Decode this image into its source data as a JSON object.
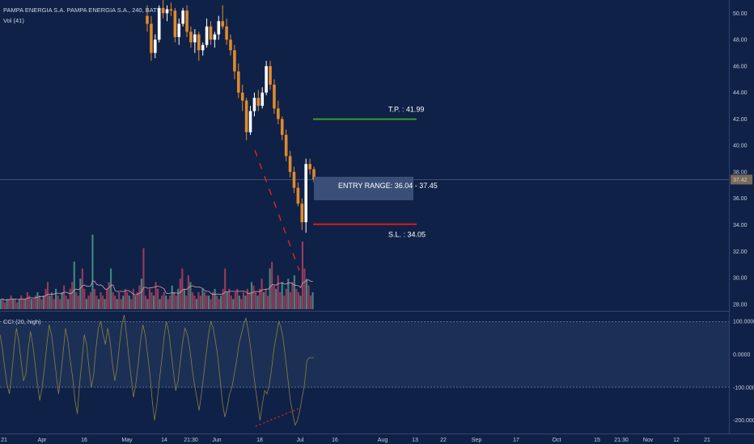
{
  "header": {
    "symbol_line": "PAMPA ENERGIA S.A. PAMPA ENERGIA S.A., 240, BATS",
    "volume_line": "Vol (41)",
    "cci_label": "CCI (20, high)"
  },
  "colors": {
    "background": "#0f2147",
    "candle_up": "#ffffff",
    "candle_down": "#e08a2c",
    "tp_line": "#3f9a2e",
    "sl_line": "#d61c1c",
    "trend_dashed": "#e02424",
    "entry_box": "#3a4f78",
    "cci_line": "#8a8040",
    "volume_bar": "#b04060",
    "volume_ma": "#d8a0a8"
  },
  "price_axis": {
    "ticks": [
      "50.00",
      "48.00",
      "46.00",
      "44.00",
      "42.00",
      "40.00",
      "38.00",
      "36.00",
      "34.00",
      "32.00",
      "30.00",
      "28.00"
    ],
    "last_price": "37.42"
  },
  "cci_axis": {
    "ticks": [
      "100.0000",
      "0.0000",
      "-100.0000",
      "-200.0000"
    ]
  },
  "time_axis": {
    "ticks": [
      "21",
      "Apr",
      "16",
      "May",
      "14",
      "21:30",
      "Jun",
      "18",
      "Jul",
      "16",
      "Aug",
      "13",
      "22",
      "Sep",
      "17",
      "Oct",
      "15",
      "21:30",
      "Nov",
      "12",
      "21"
    ]
  },
  "annotations": {
    "tp_label": "T.P. : 41.99",
    "sl_label": "S.L. : 34.05",
    "entry_label": "ENTRY RANGE: 36.04 - 37.45"
  },
  "chart_data": {
    "type": "candlestick",
    "title": "PAMPA ENERGIA S.A. PAMPA ENERGIA S.A., 240, BATS",
    "ylim": [
      27.5,
      51
    ],
    "levels": {
      "take_profit": 41.99,
      "stop_loss": 34.05,
      "entry_low": 36.04,
      "entry_high": 37.45,
      "last_price": 37.42
    },
    "cci_levels": [
      100,
      0,
      -100,
      -200
    ],
    "candles_visible": "late May – early Jul (approximate)",
    "candles": [
      {
        "o": 49.8,
        "h": 50.6,
        "l": 48.6,
        "c": 49.2
      },
      {
        "o": 49.2,
        "h": 49.8,
        "l": 46.4,
        "c": 47.0
      },
      {
        "o": 47.0,
        "h": 48.4,
        "l": 46.6,
        "c": 48.0
      },
      {
        "o": 48.0,
        "h": 50.6,
        "l": 47.8,
        "c": 50.4
      },
      {
        "o": 50.4,
        "h": 51.0,
        "l": 49.6,
        "c": 50.0
      },
      {
        "o": 50.0,
        "h": 50.6,
        "l": 49.4,
        "c": 50.3
      },
      {
        "o": 50.3,
        "h": 50.8,
        "l": 49.8,
        "c": 50.2
      },
      {
        "o": 50.2,
        "h": 50.4,
        "l": 47.8,
        "c": 48.2
      },
      {
        "o": 48.2,
        "h": 49.6,
        "l": 47.6,
        "c": 49.2
      },
      {
        "o": 49.2,
        "h": 50.4,
        "l": 49.0,
        "c": 50.2
      },
      {
        "o": 50.2,
        "h": 50.6,
        "l": 48.2,
        "c": 48.6
      },
      {
        "o": 48.6,
        "h": 49.0,
        "l": 47.4,
        "c": 47.8
      },
      {
        "o": 47.8,
        "h": 48.8,
        "l": 47.0,
        "c": 48.4
      },
      {
        "o": 48.4,
        "h": 48.6,
        "l": 46.4,
        "c": 47.2
      },
      {
        "o": 47.2,
        "h": 47.8,
        "l": 46.8,
        "c": 47.6
      },
      {
        "o": 47.6,
        "h": 49.6,
        "l": 47.4,
        "c": 49.0
      },
      {
        "o": 49.0,
        "h": 49.4,
        "l": 47.6,
        "c": 48.0
      },
      {
        "o": 48.0,
        "h": 48.6,
        "l": 47.4,
        "c": 48.4
      },
      {
        "o": 48.4,
        "h": 49.8,
        "l": 48.0,
        "c": 49.4
      },
      {
        "o": 49.4,
        "h": 50.6,
        "l": 48.8,
        "c": 49.0
      },
      {
        "o": 49.0,
        "h": 49.6,
        "l": 47.6,
        "c": 48.0
      },
      {
        "o": 48.0,
        "h": 48.4,
        "l": 46.8,
        "c": 47.2
      },
      {
        "o": 47.2,
        "h": 47.6,
        "l": 45.0,
        "c": 45.6
      },
      {
        "o": 45.6,
        "h": 46.2,
        "l": 43.6,
        "c": 44.0
      },
      {
        "o": 44.0,
        "h": 44.6,
        "l": 42.6,
        "c": 43.4
      },
      {
        "o": 43.4,
        "h": 43.6,
        "l": 40.4,
        "c": 41.0
      },
      {
        "o": 41.0,
        "h": 43.0,
        "l": 40.8,
        "c": 42.6
      },
      {
        "o": 42.6,
        "h": 44.0,
        "l": 42.2,
        "c": 43.6
      },
      {
        "o": 43.6,
        "h": 44.2,
        "l": 42.6,
        "c": 43.0
      },
      {
        "o": 43.0,
        "h": 44.4,
        "l": 42.8,
        "c": 44.0
      },
      {
        "o": 44.0,
        "h": 46.4,
        "l": 43.8,
        "c": 46.0
      },
      {
        "o": 46.0,
        "h": 46.4,
        "l": 44.2,
        "c": 44.6
      },
      {
        "o": 44.6,
        "h": 45.0,
        "l": 42.4,
        "c": 42.8
      },
      {
        "o": 42.8,
        "h": 43.4,
        "l": 41.6,
        "c": 42.0
      },
      {
        "o": 42.0,
        "h": 42.2,
        "l": 40.4,
        "c": 40.8
      },
      {
        "o": 40.8,
        "h": 41.2,
        "l": 38.8,
        "c": 39.2
      },
      {
        "o": 39.2,
        "h": 39.6,
        "l": 37.6,
        "c": 38.0
      },
      {
        "o": 38.0,
        "h": 38.4,
        "l": 36.4,
        "c": 36.8
      },
      {
        "o": 36.8,
        "h": 37.2,
        "l": 35.4,
        "c": 35.6
      },
      {
        "o": 35.6,
        "h": 36.0,
        "l": 33.6,
        "c": 34.2
      },
      {
        "o": 34.2,
        "h": 39.0,
        "l": 33.4,
        "c": 38.6
      },
      {
        "o": 38.6,
        "h": 39.0,
        "l": 37.8,
        "c": 38.2
      },
      {
        "o": 38.2,
        "h": 38.4,
        "l": 37.2,
        "c": 37.42
      }
    ],
    "volume": [
      3,
      3,
      2,
      3,
      3,
      4,
      3,
      3,
      2,
      3,
      4,
      3,
      3,
      5,
      4,
      3,
      3,
      4,
      5,
      4,
      3,
      4,
      6,
      8,
      4,
      5,
      3,
      6,
      4,
      3,
      5,
      7,
      4,
      3,
      6,
      8,
      14,
      5,
      4,
      9,
      12,
      6,
      3,
      4,
      5,
      22,
      6,
      4,
      3,
      5,
      4,
      3,
      6,
      8,
      12,
      5,
      4,
      3,
      5,
      3,
      4,
      6,
      5,
      4,
      3,
      6,
      4,
      5,
      7,
      9,
      18,
      4,
      3,
      6,
      5,
      4,
      8,
      6,
      3,
      4,
      5,
      4,
      3,
      4,
      7,
      5,
      4,
      6,
      9,
      12,
      6,
      4,
      10,
      8,
      5,
      4,
      3,
      5,
      4,
      6,
      5,
      4,
      4,
      3,
      5,
      6,
      4,
      3,
      4,
      6,
      12,
      5,
      6,
      4,
      3,
      5,
      6,
      4,
      3,
      5,
      4,
      6,
      5,
      8,
      7,
      5,
      4,
      6,
      9,
      5,
      6,
      4,
      12,
      14,
      7,
      6,
      10,
      5,
      8,
      4,
      6,
      9,
      5,
      8,
      10,
      6,
      5,
      4,
      20,
      12,
      9,
      7,
      4,
      5
    ],
    "cci": [
      60,
      20,
      -40,
      -90,
      -120,
      -60,
      20,
      80,
      40,
      -20,
      -80,
      -60,
      10,
      70,
      30,
      -30,
      -90,
      -140,
      -100,
      -40,
      30,
      90,
      60,
      0,
      -60,
      -120,
      -60,
      10,
      80,
      40,
      -20,
      -70,
      -140,
      -180,
      -90,
      -20,
      60,
      30,
      -40,
      -100,
      -60,
      20,
      80,
      100,
      60,
      30,
      80,
      40,
      -30,
      -80,
      -40,
      30,
      90,
      120,
      60,
      -10,
      -70,
      -130,
      -90,
      -30,
      40,
      90,
      60,
      0,
      -60,
      -140,
      -200,
      -150,
      -80,
      -20,
      50,
      100,
      70,
      10,
      -50,
      -110,
      -80,
      -20,
      40,
      80,
      60,
      20,
      -40,
      -90,
      -130,
      -170,
      -120,
      -60,
      0,
      60,
      100,
      80,
      40,
      -10,
      -80,
      -150,
      -190,
      -160,
      -120,
      -100,
      -60,
      -20,
      30,
      60,
      90,
      110,
      70,
      20,
      -40,
      -100,
      -150,
      -200,
      -150,
      -110,
      -120,
      -90,
      -40,
      20,
      60,
      100,
      80,
      40,
      -20,
      -80,
      -140,
      -180,
      -215,
      -200,
      -170,
      -130,
      -90,
      -20,
      -10,
      -10,
      -10
    ]
  }
}
